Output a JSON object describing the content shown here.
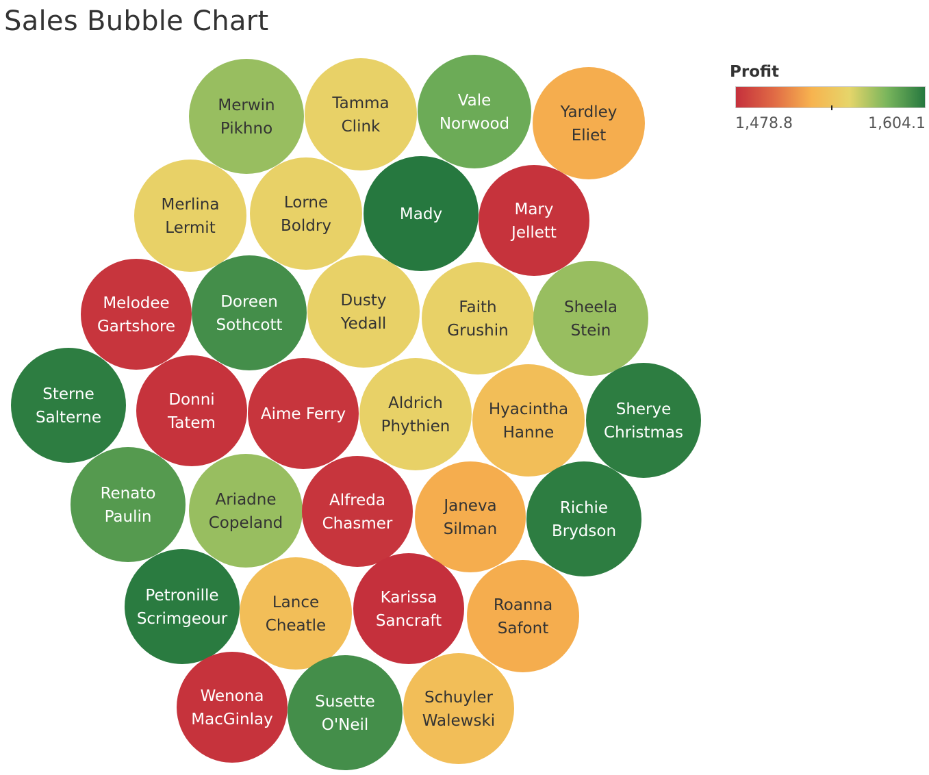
{
  "chart_data": {
    "type": "bubble",
    "title": "Sales Bubble Chart",
    "size_measure": "Sales",
    "color_measure": "Profit",
    "legend": {
      "title": "Profit",
      "min_label": "1,478.8",
      "max_label": "1,604.1",
      "placement": "top-right",
      "colors": [
        "#c5303c",
        "#e06a45",
        "#f7b34f",
        "#e6d56a",
        "#79b55c",
        "#26783f"
      ]
    },
    "bubbles": [
      {
        "name": "Merwin Pikhno",
        "lines": [
          "Merwin",
          "Pikhno"
        ],
        "profit": 1572
      },
      {
        "name": "Tamma Clink",
        "lines": [
          "Tamma",
          "Clink"
        ],
        "profit": 1551
      },
      {
        "name": "Vale Norwood",
        "lines": [
          "Vale",
          "Norwood"
        ],
        "profit": 1583
      },
      {
        "name": "Yardley Eliet",
        "lines": [
          "Yardley",
          "Eliet"
        ],
        "profit": 1527
      },
      {
        "name": "Merlina Lermit",
        "lines": [
          "Merlina",
          "Lermit"
        ],
        "profit": 1551
      },
      {
        "name": "Lorne Boldry",
        "lines": [
          "Lorne",
          "Boldry"
        ],
        "profit": 1551
      },
      {
        "name": "Mady",
        "lines": [
          "Mady"
        ],
        "profit": 1604
      },
      {
        "name": "Mary Jellett",
        "lines": [
          "Mary",
          "Jellett"
        ],
        "profit": 1480
      },
      {
        "name": "Melodee Gartshore",
        "lines": [
          "Melodee",
          "Gartshore"
        ],
        "profit": 1481
      },
      {
        "name": "Doreen Sothcott",
        "lines": [
          "Doreen",
          "Sothcott"
        ],
        "profit": 1595
      },
      {
        "name": "Dusty Yedall",
        "lines": [
          "Dusty",
          "Yedall"
        ],
        "profit": 1551
      },
      {
        "name": "Faith Grushin",
        "lines": [
          "Faith",
          "Grushin"
        ],
        "profit": 1551
      },
      {
        "name": "Sheela Stein",
        "lines": [
          "Sheela",
          "Stein"
        ],
        "profit": 1572
      },
      {
        "name": "Sterne Salterne",
        "lines": [
          "Sterne",
          "Salterne"
        ],
        "profit": 1602
      },
      {
        "name": "Donni Tatem",
        "lines": [
          "Donni",
          "Tatem"
        ],
        "profit": 1480
      },
      {
        "name": "Aime Ferry",
        "lines": [
          "Aime Ferry"
        ],
        "profit": 1481
      },
      {
        "name": "Aldrich Phythien",
        "lines": [
          "Aldrich",
          "Phythien"
        ],
        "profit": 1551
      },
      {
        "name": "Hyacintha Hanne",
        "lines": [
          "Hyacintha",
          "Hanne"
        ],
        "profit": 1537
      },
      {
        "name": "Sherye Christmas",
        "lines": [
          "Sherye",
          "Christmas"
        ],
        "profit": 1602
      },
      {
        "name": "Renato Paulin",
        "lines": [
          "Renato",
          "Paulin"
        ],
        "profit": 1590
      },
      {
        "name": "Ariadne Copeland",
        "lines": [
          "Ariadne",
          "Copeland"
        ],
        "profit": 1572
      },
      {
        "name": "Alfreda Chasmer",
        "lines": [
          "Alfreda",
          "Chasmer"
        ],
        "profit": 1481
      },
      {
        "name": "Janeva Silman",
        "lines": [
          "Janeva",
          "Silman"
        ],
        "profit": 1527
      },
      {
        "name": "Richie Brydson",
        "lines": [
          "Richie",
          "Brydson"
        ],
        "profit": 1602
      },
      {
        "name": "Petronille Scrimgeour",
        "lines": [
          "Petronille",
          "Scrimgeour"
        ],
        "profit": 1603
      },
      {
        "name": "Lance Cheatle",
        "lines": [
          "Lance",
          "Cheatle"
        ],
        "profit": 1537
      },
      {
        "name": "Karissa Sancraft",
        "lines": [
          "Karissa",
          "Sancraft"
        ],
        "profit": 1479
      },
      {
        "name": "Roanna Safont",
        "lines": [
          "Roanna",
          "Safont"
        ],
        "profit": 1527
      },
      {
        "name": "Wenona MacGinlay",
        "lines": [
          "Wenona",
          "MacGinlay"
        ],
        "profit": 1480
      },
      {
        "name": "Susette O'Neil",
        "lines": [
          "Susette",
          "O'Neil"
        ],
        "profit": 1595
      },
      {
        "name": "Schuyler Walewski",
        "lines": [
          "Schuyler",
          "Walewski"
        ],
        "profit": 1537
      }
    ]
  }
}
